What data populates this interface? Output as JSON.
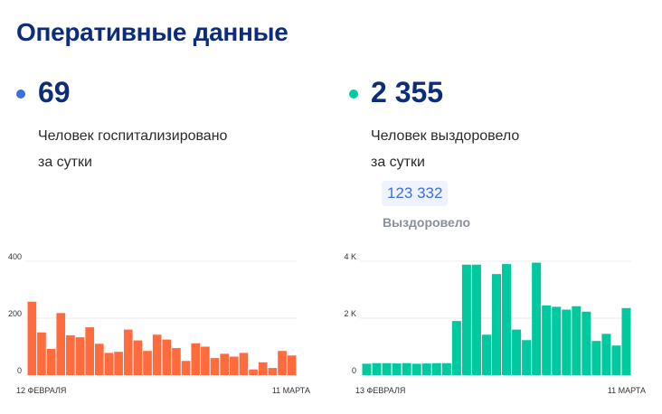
{
  "title": "Оперативные данные",
  "colors": {
    "hospitalized": "#ff6b3d",
    "recovered": "#00c9a0",
    "title": "#0d2c7a",
    "dot_hosp": "#3d6fe0",
    "dot_rec": "#00c9a0"
  },
  "hospitalized": {
    "value": "69",
    "line1": "Человек госпитализировано",
    "line2": "за сутки"
  },
  "recovered": {
    "value": "2 355",
    "line1": "Человек выздоровело",
    "line2": "за сутки",
    "total": "123 332",
    "total_label": "Выздоровело"
  },
  "chart_data": [
    {
      "type": "bar",
      "ylim": [
        0,
        400
      ],
      "yticks": [
        {
          "v": 0,
          "label": "0"
        },
        {
          "v": 200,
          "label": "200"
        },
        {
          "v": 400,
          "label": "400"
        }
      ],
      "start_label": "12 ФЕВРАЛЯ",
      "end_label": "11 МАРТА",
      "values": [
        258,
        150,
        92,
        218,
        140,
        133,
        168,
        110,
        78,
        82,
        160,
        122,
        85,
        142,
        125,
        95,
        50,
        112,
        100,
        60,
        75,
        65,
        78,
        20,
        45,
        25,
        85,
        69
      ]
    },
    {
      "type": "bar",
      "ylim": [
        0,
        4000
      ],
      "yticks": [
        {
          "v": 0,
          "label": "0"
        },
        {
          "v": 2000,
          "label": "2 K"
        },
        {
          "v": 4000,
          "label": "4 K"
        }
      ],
      "start_label": "13 ФЕВРАЛЯ",
      "end_label": "11 МАРТА",
      "values": [
        400,
        420,
        420,
        410,
        420,
        400,
        410,
        420,
        420,
        1900,
        3880,
        3880,
        1420,
        3550,
        3900,
        1600,
        1230,
        3950,
        2450,
        2400,
        2300,
        2420,
        2230,
        1200,
        1450,
        1040,
        2355
      ]
    }
  ]
}
